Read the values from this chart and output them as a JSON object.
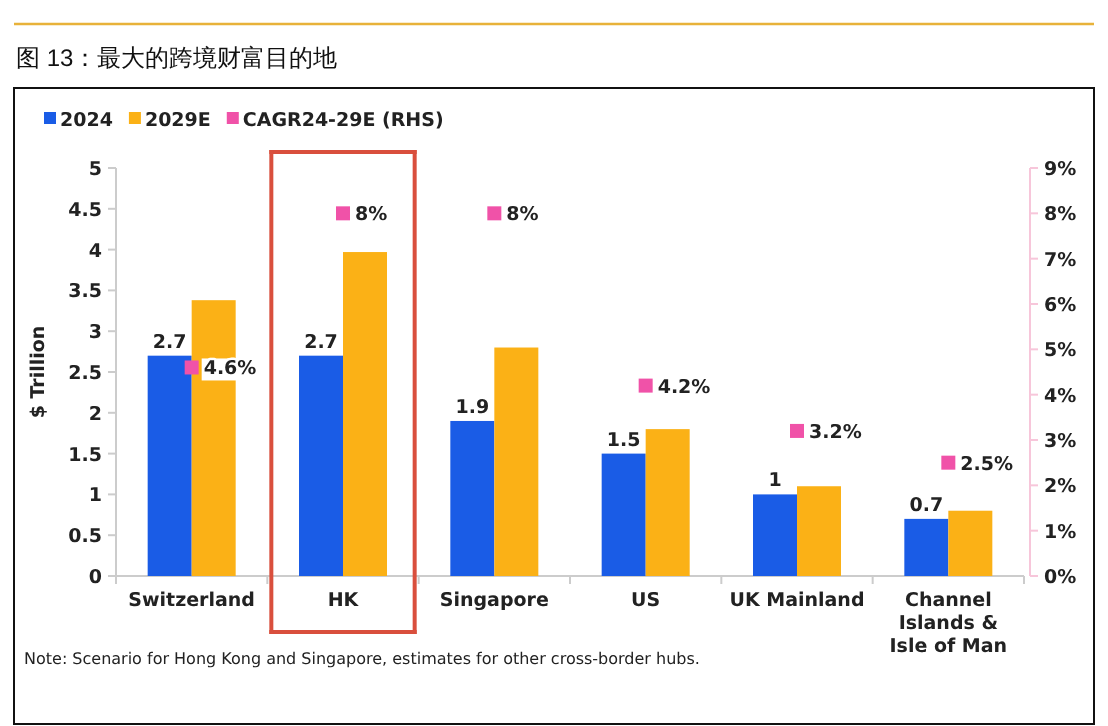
{
  "chart_data": {
    "type": "bar",
    "title": "图 13：最大的跨境财富目的地",
    "ylabel": "$ Trillion",
    "categories": [
      "Switzerland",
      "HK",
      "Singapore",
      "US",
      "UK Mainland",
      "Channel Islands & Isle of Man"
    ],
    "series": [
      {
        "name": "2024",
        "color": "#1a5ce6",
        "values": [
          2.7,
          2.7,
          1.9,
          1.5,
          1,
          0.7
        ],
        "value_labels": [
          "2.7",
          "2.7",
          "1.9",
          "1.5",
          "1",
          "0.7"
        ]
      },
      {
        "name": "2029E",
        "color": "#fbb116",
        "values": [
          3.38,
          3.97,
          2.8,
          1.8,
          1.1,
          0.8
        ]
      },
      {
        "name": "CAGR24-29E (RHS)",
        "type": "scatter",
        "axis": "y2",
        "marker": "square",
        "color": "#f052a8",
        "values": [
          4.6,
          8,
          8,
          4.2,
          3.2,
          2.5
        ],
        "value_labels": [
          "4.6%",
          "8%",
          "8%",
          "4.2%",
          "3.2%",
          "2.5%"
        ]
      }
    ],
    "ylim": [
      0,
      5
    ],
    "yticks": [
      0,
      0.5,
      1,
      1.5,
      2,
      2.5,
      3,
      3.5,
      4,
      4.5,
      5
    ],
    "y2lim": [
      0,
      9
    ],
    "y2ticks": [
      {
        "value": 0,
        "label": "0%"
      },
      {
        "value": 1,
        "label": "1%"
      },
      {
        "value": 2,
        "label": "2%"
      },
      {
        "value": 3,
        "label": "3%"
      },
      {
        "value": 4,
        "label": "4%"
      },
      {
        "value": 5,
        "label": "5%"
      },
      {
        "value": 6,
        "label": "6%"
      },
      {
        "value": 7,
        "label": "7%"
      },
      {
        "value": 8,
        "label": "8%"
      },
      {
        "value": 9,
        "label": "9%"
      }
    ],
    "grid": false,
    "legend": "top left",
    "annotations": [
      "Note: Scenario for Hong Kong and Singapore, estimates for other cross-border hubs."
    ]
  }
}
